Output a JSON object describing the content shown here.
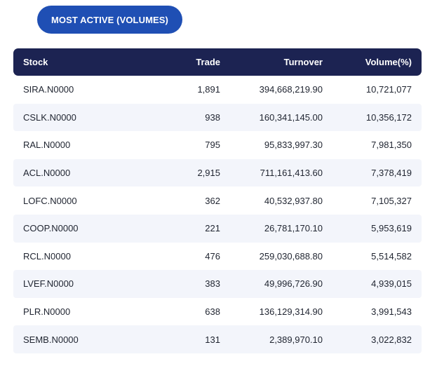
{
  "tab": {
    "label": "MOST ACTIVE (VOLUMES)"
  },
  "columns": {
    "stock": "Stock",
    "trade": "Trade",
    "turnover": "Turnover",
    "volume": "Volume(%)"
  },
  "rows": [
    {
      "stock": "SIRA.N0000",
      "trade": "1,891",
      "turnover": "394,668,219.90",
      "volume": "10,721,077"
    },
    {
      "stock": "CSLK.N0000",
      "trade": "938",
      "turnover": "160,341,145.00",
      "volume": "10,356,172"
    },
    {
      "stock": "RAL.N0000",
      "trade": "795",
      "turnover": "95,833,997.30",
      "volume": "7,981,350"
    },
    {
      "stock": "ACL.N0000",
      "trade": "2,915",
      "turnover": "711,161,413.60",
      "volume": "7,378,419"
    },
    {
      "stock": "LOFC.N0000",
      "trade": "362",
      "turnover": "40,532,937.80",
      "volume": "7,105,327"
    },
    {
      "stock": "COOP.N0000",
      "trade": "221",
      "turnover": "26,781,170.10",
      "volume": "5,953,619"
    },
    {
      "stock": "RCL.N0000",
      "trade": "476",
      "turnover": "259,030,688.80",
      "volume": "5,514,582"
    },
    {
      "stock": "LVEF.N0000",
      "trade": "383",
      "turnover": "49,996,726.90",
      "volume": "4,939,015"
    },
    {
      "stock": "PLR.N0000",
      "trade": "638",
      "turnover": "136,129,314.90",
      "volume": "3,991,543"
    },
    {
      "stock": "SEMB.N0000",
      "trade": "131",
      "turnover": "2,389,970.10",
      "volume": "3,022,832"
    }
  ],
  "colors": {
    "accent": "#1f4fb4",
    "header_bg": "#1c2352",
    "row_alt": "#f3f5fb"
  }
}
